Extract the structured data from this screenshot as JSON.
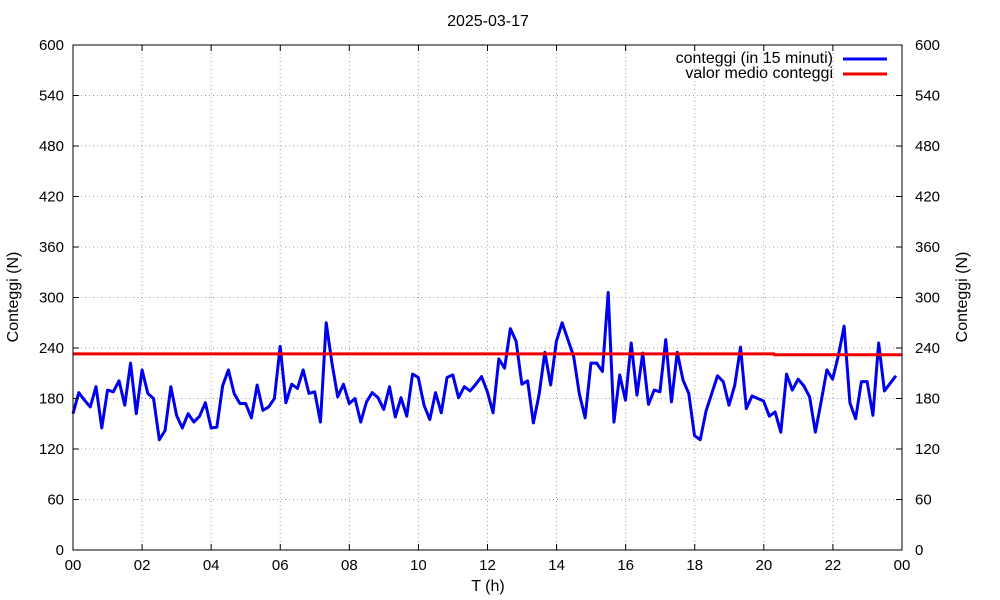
{
  "chart_data": {
    "type": "line",
    "title": "2025-03-17",
    "xlabel": "T (h)",
    "ylabel": "Conteggi (N)",
    "y2label": "Conteggi (N)",
    "xlim": [
      0,
      24
    ],
    "ylim": [
      0,
      600
    ],
    "x_tick_labels": [
      "00",
      "02",
      "04",
      "06",
      "08",
      "10",
      "12",
      "14",
      "16",
      "18",
      "20",
      "22",
      "00"
    ],
    "y_ticks": [
      0,
      60,
      120,
      180,
      240,
      300,
      360,
      420,
      480,
      540,
      600
    ],
    "grid": true,
    "legend_position": "top-right",
    "series": [
      {
        "name": "conteggi (in 15 minuti)",
        "color": "#0000ee",
        "values": [
          162,
          187,
          178,
          170,
          194,
          145,
          190,
          188,
          201,
          172,
          222,
          162,
          214,
          186,
          180,
          131,
          142,
          194,
          160,
          145,
          162,
          152,
          159,
          175,
          145,
          146,
          195,
          214,
          186,
          174,
          174,
          157,
          196,
          166,
          170,
          180,
          242,
          175,
          197,
          192,
          214,
          186,
          188,
          152,
          270,
          222,
          182,
          197,
          174,
          180,
          152,
          176,
          187,
          181,
          167,
          194,
          158,
          181,
          159,
          209,
          205,
          172,
          155,
          187,
          163,
          205,
          208,
          181,
          194,
          189,
          197,
          206,
          188,
          163,
          227,
          216,
          263,
          248,
          197,
          201,
          151,
          185,
          235,
          196,
          248,
          270,
          250,
          230,
          185,
          157,
          222,
          222,
          212,
          306,
          152,
          208,
          178,
          246,
          184,
          234,
          173,
          190,
          188,
          250,
          176,
          235,
          202,
          186,
          136,
          131,
          165,
          186,
          207,
          200,
          172,
          196,
          241,
          168,
          183,
          180,
          177,
          159,
          164,
          140,
          209,
          190,
          203,
          195,
          182,
          140,
          176,
          214,
          203,
          231,
          266,
          175,
          156,
          200,
          200,
          160,
          246,
          189,
          198,
          207
        ],
        "x_step_hours": 0.1666
      },
      {
        "name": "valor medio conteggi",
        "color": "#ee0000",
        "values": [
          233,
          233,
          232,
          232
        ],
        "x": [
          0,
          20.3,
          20.3,
          24
        ]
      }
    ]
  }
}
